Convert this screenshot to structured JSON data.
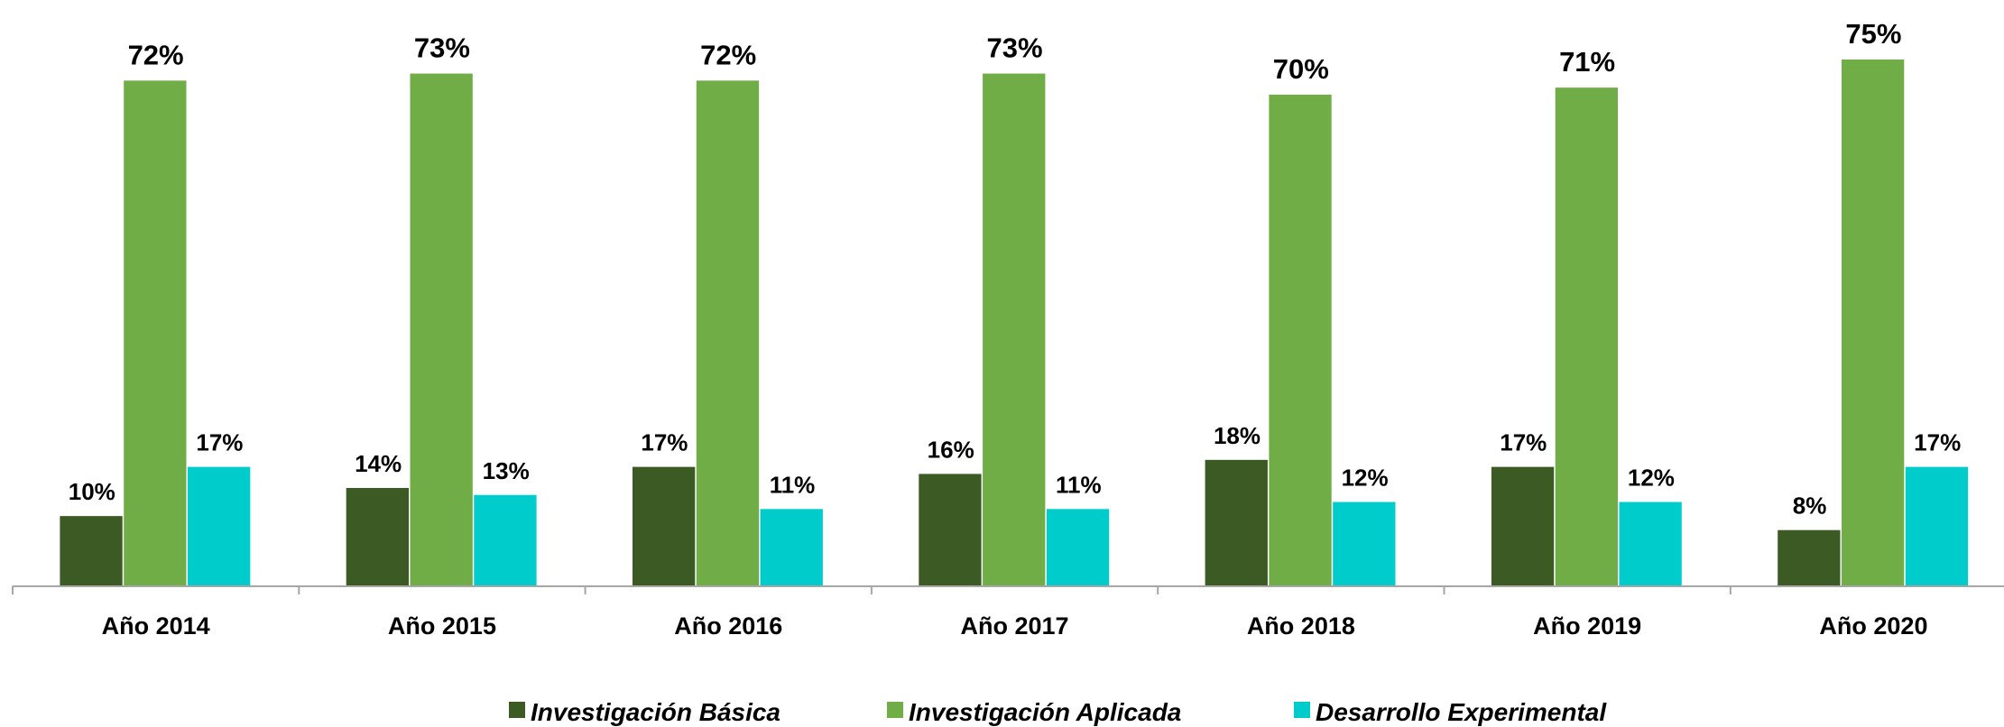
{
  "chart_data": {
    "type": "bar",
    "categories": [
      "Año 2014",
      "Año 2015",
      "Año 2016",
      "Año 2017",
      "Año 2018",
      "Año 2019",
      "Año 2020"
    ],
    "series": [
      {
        "name": "Investigación Básica",
        "color": "#3b5a24",
        "values": [
          10,
          14,
          17,
          16,
          18,
          17,
          8
        ],
        "value_labels": [
          "10%",
          "14%",
          "17%",
          "16%",
          "18%",
          "17%",
          "8%"
        ]
      },
      {
        "name": "Investigación Aplicada",
        "color": "#70ad47",
        "values": [
          72,
          73,
          72,
          73,
          70,
          71,
          75
        ],
        "value_labels": [
          "72%",
          "73%",
          "72%",
          "73%",
          "70%",
          "71%",
          "75%"
        ]
      },
      {
        "name": "Desarrollo Experimental",
        "color": "#00cccc",
        "values": [
          17,
          13,
          11,
          11,
          12,
          12,
          17
        ],
        "value_labels": [
          "17%",
          "13%",
          "11%",
          "11%",
          "12%",
          "12%",
          "17%"
        ]
      }
    ]
  }
}
